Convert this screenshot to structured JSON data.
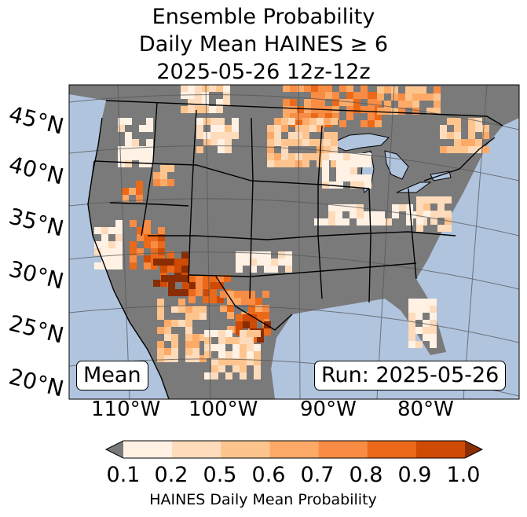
{
  "title": {
    "line1": "Ensemble Probability",
    "line2": "Daily Mean HAINES ≥ 6",
    "line3": "2025-05-26 12z-12z"
  },
  "map": {
    "lat_labels": [
      "45°N",
      "40°N",
      "35°N",
      "30°N",
      "25°N",
      "20°N"
    ],
    "lon_labels": [
      "110°W",
      "100°W",
      "90°W",
      "80°W"
    ],
    "stat_label": "Mean",
    "run_label": "Run: 2025-05-26",
    "colors": {
      "ocean": "#b0c4de",
      "no_signal": "#7a7a7a",
      "boundaries": "#000000",
      "graticule": "#555555"
    }
  },
  "colorbar": {
    "label": "HAINES Daily Mean Probability",
    "ticks": [
      "0.1",
      "0.2",
      "0.5",
      "0.6",
      "0.7",
      "0.8",
      "0.9",
      "1.0"
    ],
    "bins": [
      {
        "from": 0.1,
        "to": 0.2,
        "color": "#fff1e4"
      },
      {
        "from": 0.2,
        "to": 0.5,
        "color": "#fedbba"
      },
      {
        "from": 0.5,
        "to": 0.6,
        "color": "#fdc48e"
      },
      {
        "from": 0.6,
        "to": 0.7,
        "color": "#fdaa68"
      },
      {
        "from": 0.7,
        "to": 0.8,
        "color": "#f98c44"
      },
      {
        "from": 0.8,
        "to": 0.9,
        "color": "#ea6a19"
      },
      {
        "from": 0.9,
        "to": 1.0,
        "color": "#cf4a05"
      }
    ],
    "under_color": "#7a7a7a",
    "over_color": "#8a2d04"
  }
}
